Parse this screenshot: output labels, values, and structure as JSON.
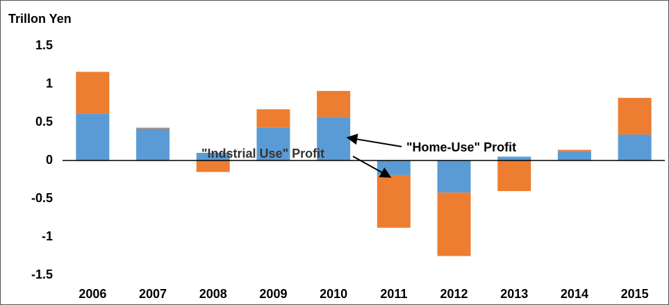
{
  "chart_data": {
    "type": "stacked_bar",
    "y_label": "Trillon Yen",
    "categories": [
      "2006",
      "2007",
      "2008",
      "2009",
      "2010",
      "2011",
      "2012",
      "2013",
      "2014",
      "2015"
    ],
    "series": [
      {
        "color": "#5b9bd5",
        "values": [
          0.61,
          0.42,
          0.1,
          0.43,
          0.57,
          -0.19,
          -0.42,
          0.05,
          0.12,
          0.34
        ]
      },
      {
        "color": "#ed7d31",
        "values": [
          0.55,
          0.01,
          -0.15,
          0.24,
          0.34,
          -0.69,
          -0.83,
          -0.4,
          0.02,
          0.48
        ]
      }
    ],
    "ylim": [
      -1.7,
      1.7
    ],
    "yticks": [
      -1.5,
      -1,
      -0.5,
      0,
      0.5,
      1,
      1.5
    ],
    "grid": false,
    "annotations": [
      "\"Home-Use\" Profit",
      "\"Indstrial Use\" Profit"
    ]
  }
}
